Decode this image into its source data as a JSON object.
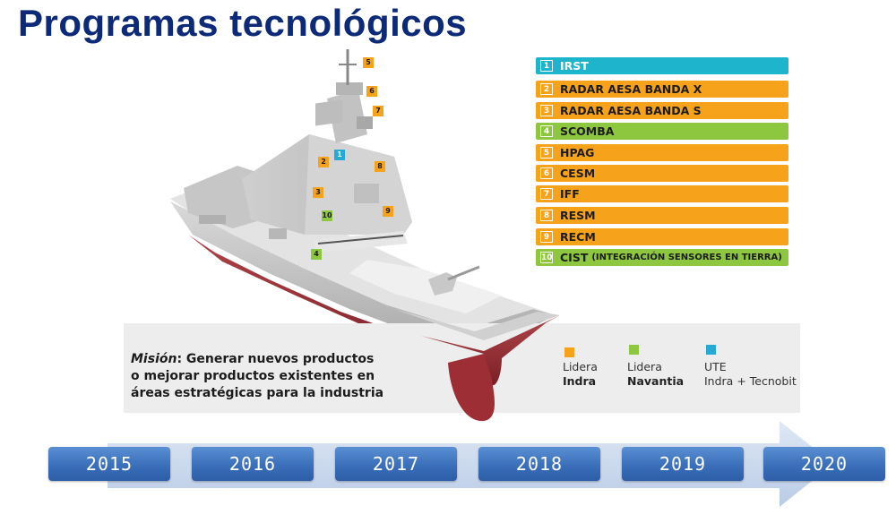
{
  "title": "Programas tecnológicos",
  "programs": [
    {
      "num": "1",
      "label": "IRST",
      "extra": "",
      "color": "blue"
    },
    {
      "num": "2",
      "label": "RADAR AESA BANDA X",
      "extra": "",
      "color": "orange"
    },
    {
      "num": "3",
      "label": "RADAR AESA BANDA S",
      "extra": "",
      "color": "orange"
    },
    {
      "num": "4",
      "label": "SCOMBA",
      "extra": "",
      "color": "green"
    },
    {
      "num": "5",
      "label": "HPAG",
      "extra": "",
      "color": "orange"
    },
    {
      "num": "6",
      "label": "CESM",
      "extra": "",
      "color": "orange"
    },
    {
      "num": "7",
      "label": "IFF",
      "extra": "",
      "color": "orange"
    },
    {
      "num": "8",
      "label": "RESM",
      "extra": "",
      "color": "orange"
    },
    {
      "num": "9",
      "label": "RECM",
      "extra": "",
      "color": "orange"
    },
    {
      "num": "10",
      "label": "CIST",
      "extra": "(INTEGRACIÓN SENSORES EN TIERRA)",
      "color": "green"
    }
  ],
  "ship_markers": [
    {
      "num": "5",
      "color": "orange"
    },
    {
      "num": "6",
      "color": "orange"
    },
    {
      "num": "7",
      "color": "orange"
    },
    {
      "num": "1",
      "color": "blue"
    },
    {
      "num": "2",
      "color": "orange"
    },
    {
      "num": "8",
      "color": "orange"
    },
    {
      "num": "3",
      "color": "orange"
    },
    {
      "num": "10",
      "color": "green"
    },
    {
      "num": "9",
      "color": "orange"
    },
    {
      "num": "4",
      "color": "green"
    }
  ],
  "mission": {
    "label": "Misión",
    "text_line1": ": Generar nuevos productos",
    "text_line2": "o mejorar productos existentes en",
    "text_line3": "áreas estratégicas para la industria"
  },
  "legend": {
    "indra": {
      "line1": "Lidera",
      "line2": "Indra"
    },
    "navantia": {
      "line1": "Lidera",
      "line2": "Navantia"
    },
    "ute": {
      "line1": "UTE",
      "line2": "Indra + Tecnobit"
    }
  },
  "colors": {
    "orange": "#f7a21b",
    "green": "#8dc63f",
    "blue": "#27a9d6",
    "title": "#0d2a78",
    "timeline": "#3a6fba"
  },
  "years": [
    "2015",
    "2016",
    "2017",
    "2018",
    "2019",
    "2020"
  ]
}
